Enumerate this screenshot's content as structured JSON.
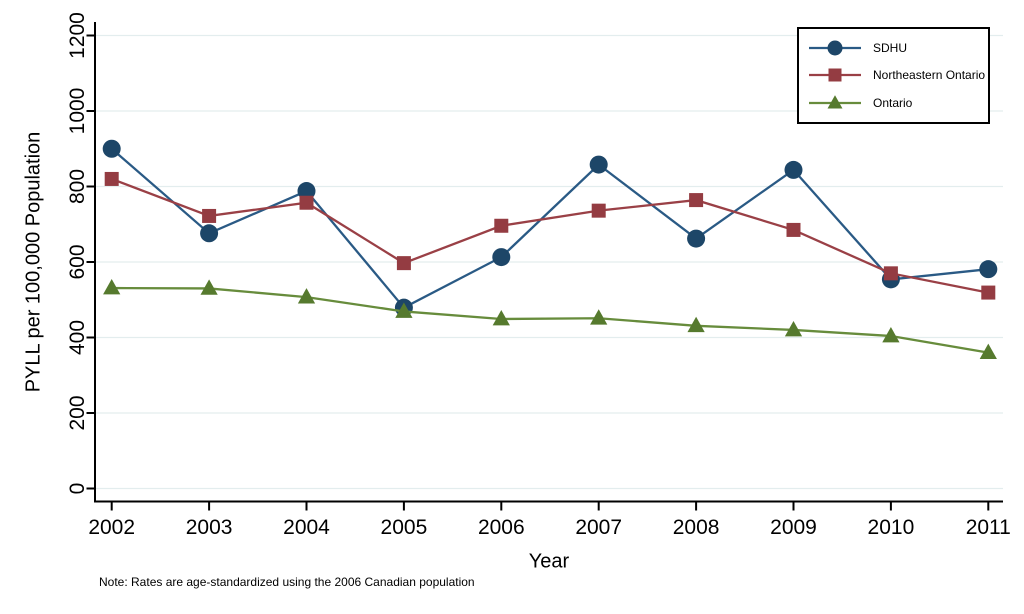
{
  "chart_data": {
    "type": "line",
    "xlabel": "Year",
    "ylabel": "PYLL per 100,000 Population",
    "note": "Note: Rates are age-standardized using the 2006 Canadian population",
    "x": [
      2002,
      2003,
      2004,
      2005,
      2006,
      2007,
      2008,
      2009,
      2010,
      2011
    ],
    "ylim": [
      0,
      1200
    ],
    "yticks": [
      0,
      200,
      400,
      600,
      800,
      1000,
      1200
    ],
    "grid": "horizontal",
    "legend_position": "top-right",
    "series": [
      {
        "name": "SDHU",
        "marker": "circle",
        "color": "#1d4668",
        "line_color": "#2a5a85",
        "values": [
          900,
          676,
          788,
          479,
          613,
          858,
          662,
          844,
          554,
          581
        ]
      },
      {
        "name": "Northeastern Ontario",
        "marker": "square",
        "color": "#943c42",
        "line_color": "#9a4046",
        "values": [
          820,
          722,
          757,
          597,
          696,
          736,
          764,
          685,
          570,
          519
        ]
      },
      {
        "name": "Ontario",
        "marker": "triangle",
        "color": "#567a2e",
        "line_color": "#678c3c",
        "values": [
          531,
          530,
          507,
          469,
          449,
          451,
          431,
          420,
          404,
          360
        ]
      }
    ],
    "colors": {
      "grid": "#e3edee",
      "axis": "#000000",
      "background": "#ffffff"
    }
  }
}
